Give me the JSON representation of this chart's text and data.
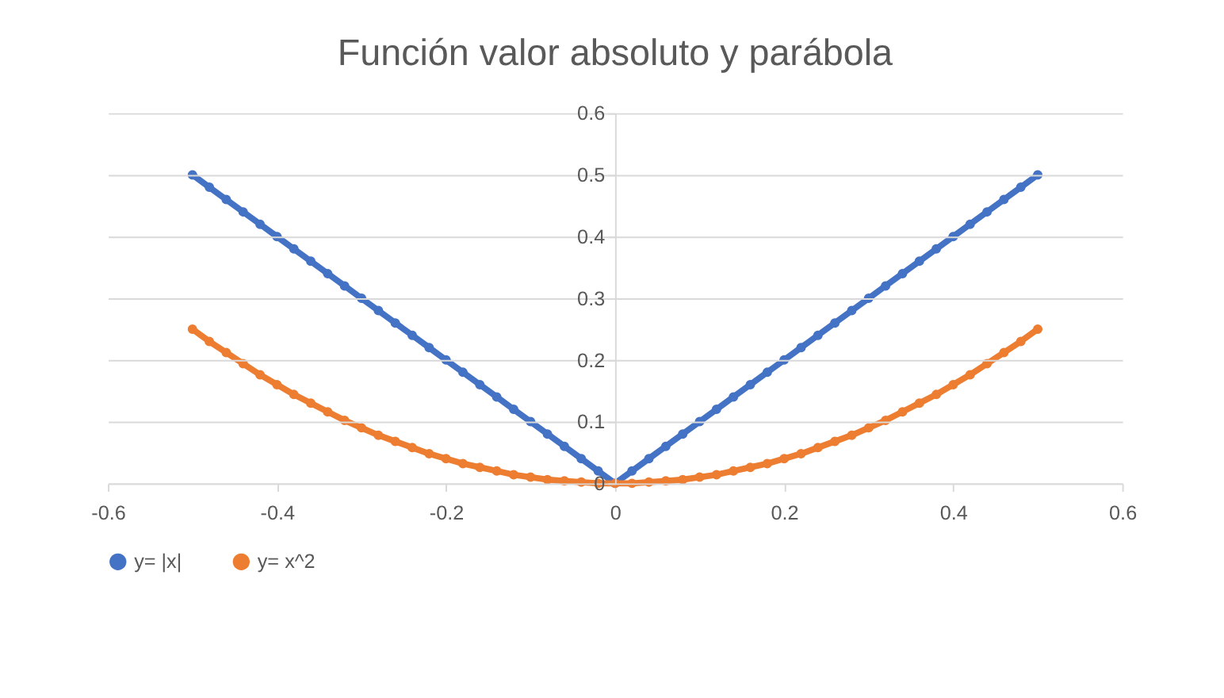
{
  "chart_data": {
    "type": "line",
    "title": "Función valor absoluto y parábola",
    "x": [
      -0.5,
      -0.48,
      -0.46,
      -0.44,
      -0.42,
      -0.4,
      -0.38,
      -0.36,
      -0.34,
      -0.32,
      -0.3,
      -0.28,
      -0.26,
      -0.24,
      -0.22,
      -0.2,
      -0.18,
      -0.16,
      -0.14,
      -0.12,
      -0.1,
      -0.08,
      -0.06,
      -0.04,
      -0.02,
      0,
      0.02,
      0.04,
      0.06,
      0.08,
      0.1,
      0.12,
      0.14,
      0.16,
      0.18,
      0.2,
      0.22,
      0.24,
      0.26,
      0.28,
      0.3,
      0.32,
      0.34,
      0.36,
      0.38,
      0.4,
      0.42,
      0.44,
      0.46,
      0.48,
      0.5
    ],
    "series": [
      {
        "name": "y= |x|",
        "color": "#4472c4",
        "values": [
          0.5,
          0.48,
          0.46,
          0.44,
          0.42,
          0.4,
          0.38,
          0.36,
          0.34,
          0.32,
          0.3,
          0.28,
          0.26,
          0.24,
          0.22,
          0.2,
          0.18,
          0.16,
          0.14,
          0.12,
          0.1,
          0.08,
          0.06,
          0.04,
          0.02,
          0,
          0.02,
          0.04,
          0.06,
          0.08,
          0.1,
          0.12,
          0.14,
          0.16,
          0.18,
          0.2,
          0.22,
          0.24,
          0.26,
          0.28,
          0.3,
          0.32,
          0.34,
          0.36,
          0.38,
          0.4,
          0.42,
          0.44,
          0.46,
          0.48,
          0.5
        ]
      },
      {
        "name": "y= x^2",
        "color": "#ed7d31",
        "values": [
          0.25,
          0.23,
          0.212,
          0.194,
          0.176,
          0.16,
          0.144,
          0.13,
          0.116,
          0.102,
          0.09,
          0.078,
          0.068,
          0.058,
          0.048,
          0.04,
          0.032,
          0.026,
          0.02,
          0.014,
          0.01,
          0.006,
          0.004,
          0.002,
          0,
          0,
          0,
          0.002,
          0.004,
          0.006,
          0.01,
          0.014,
          0.02,
          0.026,
          0.032,
          0.04,
          0.048,
          0.058,
          0.068,
          0.078,
          0.09,
          0.102,
          0.116,
          0.13,
          0.144,
          0.16,
          0.176,
          0.194,
          0.212,
          0.23,
          0.25
        ]
      }
    ],
    "xlim": [
      -0.6,
      0.6
    ],
    "xticks": [
      -0.6,
      -0.4,
      -0.2,
      0,
      0.2,
      0.4,
      0.6
    ],
    "ylim": [
      0,
      0.6
    ],
    "yticks": [
      0,
      0.1,
      0.2,
      0.3,
      0.4,
      0.5,
      0.6
    ],
    "grid": "y",
    "legend": "bottom",
    "marker": "circle",
    "line_style": "solid"
  }
}
